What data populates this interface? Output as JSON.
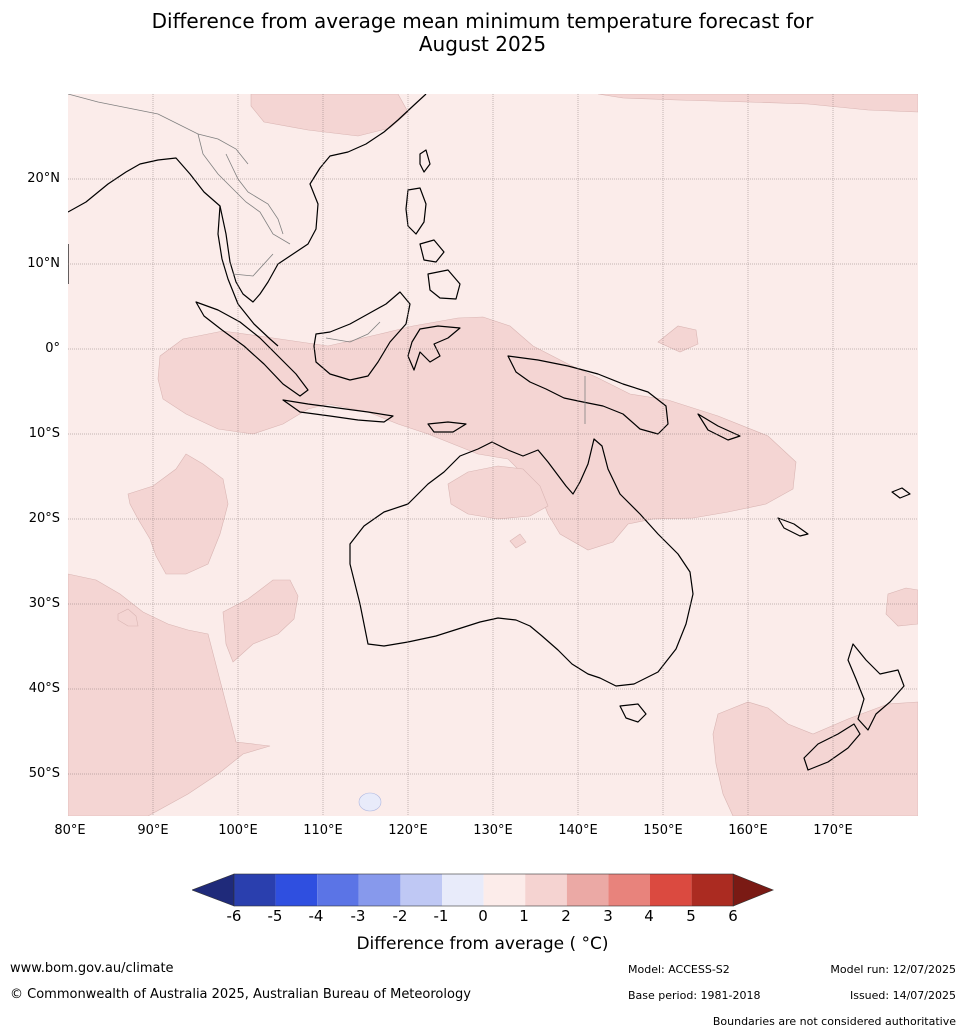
{
  "title_line1": "Difference from average mean minimum temperature forecast for",
  "title_line2": "August 2025",
  "lat_labels": [
    "20°N",
    "10°N",
    "0°",
    "10°S",
    "20°S",
    "30°S",
    "40°S",
    "50°S"
  ],
  "lon_labels": [
    "80°E",
    "90°E",
    "100°E",
    "110°E",
    "120°E",
    "130°E",
    "140°E",
    "150°E",
    "160°E",
    "170°E"
  ],
  "colorbar": {
    "labels": [
      "-6",
      "-5",
      "-4",
      "-3",
      "-2",
      "-1",
      "0",
      "1",
      "2",
      "3",
      "4",
      "5",
      "6"
    ],
    "colors": [
      "#1f2a7a",
      "#2a3fae",
      "#2f4fe0",
      "#5b74e6",
      "#8799ec",
      "#bfc8f4",
      "#e8ebfa",
      "#fcecea",
      "#f5d3d1",
      "#eba9a5",
      "#e8837c",
      "#db4a40",
      "#ab2b21",
      "#7a1a14"
    ],
    "title": "Difference from average ( °C)"
  },
  "colors": {
    "ocean_fill": "#fbecea",
    "warm_fill": "#f4d5d3",
    "cool_fill": "#e8ebfa",
    "coast": "#000000",
    "border": "#808080"
  },
  "footer": {
    "website": "www.bom.gov.au/climate",
    "copyright": "© Commonwealth of Australia 2025, Australian Bureau of Meteorology",
    "model": "Model: ACCESS-S2",
    "base_period": "Base period: 1981-2018",
    "model_run": "Model run: 12/07/2025",
    "issued": "Issued: 14/07/2025",
    "disclaimer": "Boundaries are not considered authoritative"
  }
}
